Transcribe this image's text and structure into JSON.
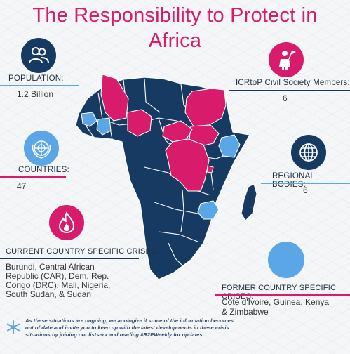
{
  "title": {
    "line1": "The Responsibility to Protect in",
    "line2": "Africa"
  },
  "colors": {
    "pink": "#d81b6a",
    "navy": "#173a63",
    "light_blue": "#5aa6e6",
    "background": "#f4f6f8"
  },
  "population": {
    "label": "POPULATION:",
    "value": "1.2 Billion",
    "icon": "people-icon"
  },
  "countries": {
    "label": "COUNTRIES:",
    "value": "47",
    "icon": "un-emblem-icon"
  },
  "members": {
    "label": "ICRtoP Civil Society Members:",
    "value": "6",
    "icon": "person-with-flag-icon"
  },
  "regional": {
    "label": "REGIONAL BODIES:",
    "value": "6",
    "icon": "globe-icon"
  },
  "current": {
    "label": "CURRENT COUNTRY SPECIFIC CRISES:",
    "lines": [
      "Burundi, Central African",
      "Republic (CAR), Dem. Rep.",
      "Congo (DRC), Mali, Nigeria,",
      "South Sudan, & Sudan"
    ],
    "icon": "flame-icon"
  },
  "former": {
    "label": "FORMER COUNTRY SPECIFIC CRISES:",
    "lines": [
      "Côte d'Ivoire, Guinea, Kenya",
      "& Zimbabwe"
    ]
  },
  "footer": {
    "icon": "snowflake-icon",
    "lines": [
      "As these situations are ongoing, we apologize if some of the information becomes",
      "out of date and invite you to keep up with the latest developments in these crisis",
      "situations by joining our listserv and reading #R2PWeekly for updates."
    ]
  }
}
